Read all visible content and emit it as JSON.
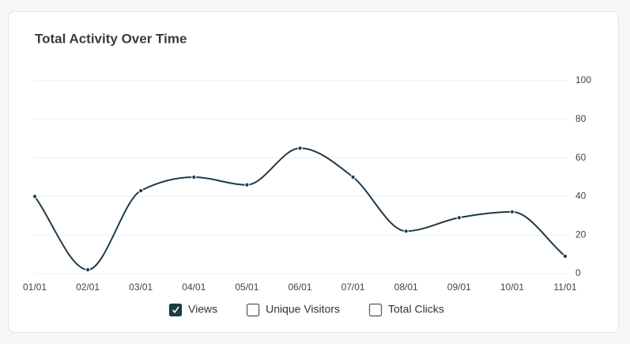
{
  "chart_data": {
    "type": "line",
    "title": "Total Activity Over Time",
    "categories": [
      "01/01",
      "02/01",
      "03/01",
      "04/01",
      "05/01",
      "06/01",
      "07/01",
      "08/01",
      "09/01",
      "10/01",
      "11/01"
    ],
    "series": [
      {
        "name": "Views",
        "color": "#1e3a4a",
        "values": [
          40,
          2,
          43,
          50,
          46,
          65,
          50,
          22,
          29,
          32,
          9
        ]
      }
    ],
    "hidden_series": [
      "Unique Visitors",
      "Total Clicks"
    ],
    "ylim": [
      0,
      100
    ],
    "yticks": [
      0,
      20,
      40,
      60,
      80,
      100
    ],
    "grid": true,
    "smooth": true
  }
}
